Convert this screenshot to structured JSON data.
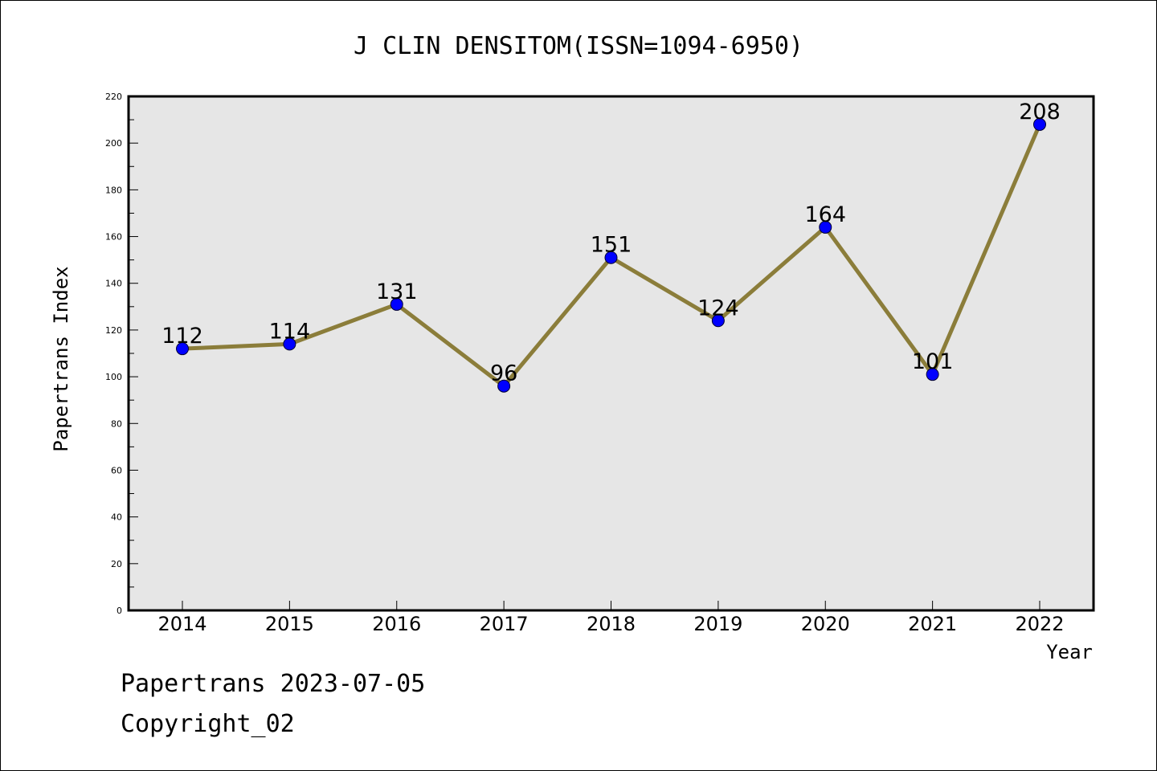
{
  "chart_data": {
    "type": "line",
    "title": "J CLIN DENSITOM(ISSN=1094-6950)",
    "xlabel": "Year",
    "ylabel": "Papertrans Index",
    "categories": [
      "2014",
      "2015",
      "2016",
      "2017",
      "2018",
      "2019",
      "2020",
      "2021",
      "2022"
    ],
    "values": [
      112,
      114,
      131,
      96,
      151,
      124,
      164,
      101,
      208
    ],
    "data_labels": [
      "112",
      "114",
      "131",
      "96",
      "151",
      "124",
      "164",
      "101",
      "208"
    ],
    "ylim": [
      0,
      220
    ],
    "y_ticks": [
      "0",
      "20",
      "40",
      "60",
      "80",
      "100",
      "120",
      "140",
      "160",
      "180",
      "200",
      "220"
    ],
    "grid": false,
    "colors": {
      "line": "#8B7D3A",
      "marker": "#0000FF",
      "plot_background": "#E6E6E6"
    }
  },
  "footer": {
    "line1": "Papertrans 2023-07-05",
    "line2": "Copyright_02"
  }
}
